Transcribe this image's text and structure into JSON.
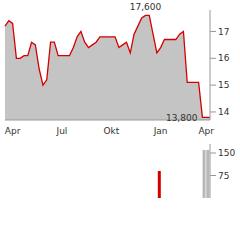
{
  "chart_data": [
    {
      "type": "area",
      "categories": [
        null,
        null,
        "Apr",
        null,
        null,
        null,
        null,
        null,
        null,
        null,
        null,
        null,
        null,
        null,
        null,
        "Jul",
        null,
        null,
        null,
        null,
        null,
        null,
        null,
        null,
        null,
        null,
        null,
        null,
        "Okt",
        null,
        null,
        null,
        null,
        null,
        null,
        null,
        null,
        null,
        null,
        null,
        null,
        "Jan",
        null,
        null,
        null,
        null,
        null,
        null,
        null,
        null,
        null,
        null,
        null,
        "Apr",
        null
      ],
      "values": [
        17.2,
        17.4,
        17.3,
        16.0,
        16.0,
        16.1,
        16.1,
        16.6,
        16.5,
        15.6,
        15.0,
        15.2,
        16.6,
        16.6,
        16.1,
        16.1,
        16.1,
        16.1,
        16.4,
        16.8,
        17.0,
        16.6,
        16.4,
        16.5,
        16.6,
        16.8,
        16.8,
        16.8,
        16.8,
        16.8,
        16.4,
        16.5,
        16.6,
        16.2,
        16.9,
        17.2,
        17.5,
        17.6,
        17.6,
        16.9,
        16.2,
        16.4,
        16.7,
        16.7,
        16.7,
        16.7,
        16.9,
        17.0,
        15.1,
        15.1,
        15.1,
        15.1,
        13.8,
        13.8,
        13.8
      ],
      "color": "#d40000",
      "ylim": [
        13.7,
        17.8
      ],
      "yticks": [
        14,
        15,
        16,
        17
      ],
      "grid": false,
      "annotations": [
        {
          "text": "17,600",
          "x": 37,
          "y": 17.6
        },
        {
          "text": "13,800",
          "x": 52,
          "y": 13.8
        }
      ]
    },
    {
      "type": "bar",
      "categories": [
        null,
        null,
        null,
        null,
        null,
        null,
        null,
        null,
        null,
        null,
        null,
        null,
        null,
        null,
        null,
        null,
        null,
        null,
        null,
        null,
        null,
        null,
        null,
        null,
        null,
        null,
        null,
        null,
        null,
        null,
        null,
        null,
        null,
        null,
        null,
        null,
        null,
        null,
        null,
        null,
        null,
        null,
        null,
        null,
        null,
        null,
        null,
        null,
        null,
        null,
        null,
        null,
        null,
        null,
        null
      ],
      "values": [
        null,
        null,
        null,
        null,
        null,
        null,
        null,
        null,
        null,
        null,
        null,
        null,
        null,
        null,
        null,
        null,
        null,
        null,
        null,
        null,
        null,
        null,
        null,
        null,
        null,
        null,
        null,
        null,
        null,
        null,
        null,
        null,
        null,
        null,
        null,
        null,
        null,
        null,
        null,
        null,
        null,
        90,
        null,
        null,
        null,
        null,
        null,
        null,
        null,
        null,
        null,
        null,
        null,
        160,
        160
      ],
      "colors": [
        "#b8b8b8",
        "#b8b8b8",
        "#b8b8b8",
        "#b8b8b8",
        "#b8b8b8",
        "#b8b8b8",
        "#b8b8b8",
        "#b8b8b8",
        "#b8b8b8",
        "#b8b8b8",
        "#b8b8b8",
        "#b8b8b8",
        "#b8b8b8",
        "#b8b8b8",
        "#b8b8b8",
        "#b8b8b8",
        "#b8b8b8",
        "#b8b8b8",
        "#b8b8b8",
        "#b8b8b8",
        "#b8b8b8",
        "#b8b8b8",
        "#b8b8b8",
        "#b8b8b8",
        "#b8b8b8",
        "#b8b8b8",
        "#b8b8b8",
        "#b8b8b8",
        "#b8b8b8",
        "#b8b8b8",
        "#b8b8b8",
        "#b8b8b8",
        "#b8b8b8",
        "#b8b8b8",
        "#b8b8b8",
        "#b8b8b8",
        "#b8b8b8",
        "#b8b8b8",
        "#b8b8b8",
        "#b8b8b8",
        "#b8b8b8",
        "#d40000",
        "#b8b8b8",
        "#b8b8b8",
        "#b8b8b8",
        "#b8b8b8",
        "#b8b8b8",
        "#b8b8b8",
        "#b8b8b8",
        "#b8b8b8",
        "#b8b8b8",
        "#b8b8b8",
        "#b8b8b8",
        "#b8b8b8",
        "#b8b8b8"
      ],
      "ylim": [
        0,
        180
      ],
      "yticks": [
        75,
        150
      ],
      "grid": false,
      "tick_labels": "y"
    }
  ]
}
